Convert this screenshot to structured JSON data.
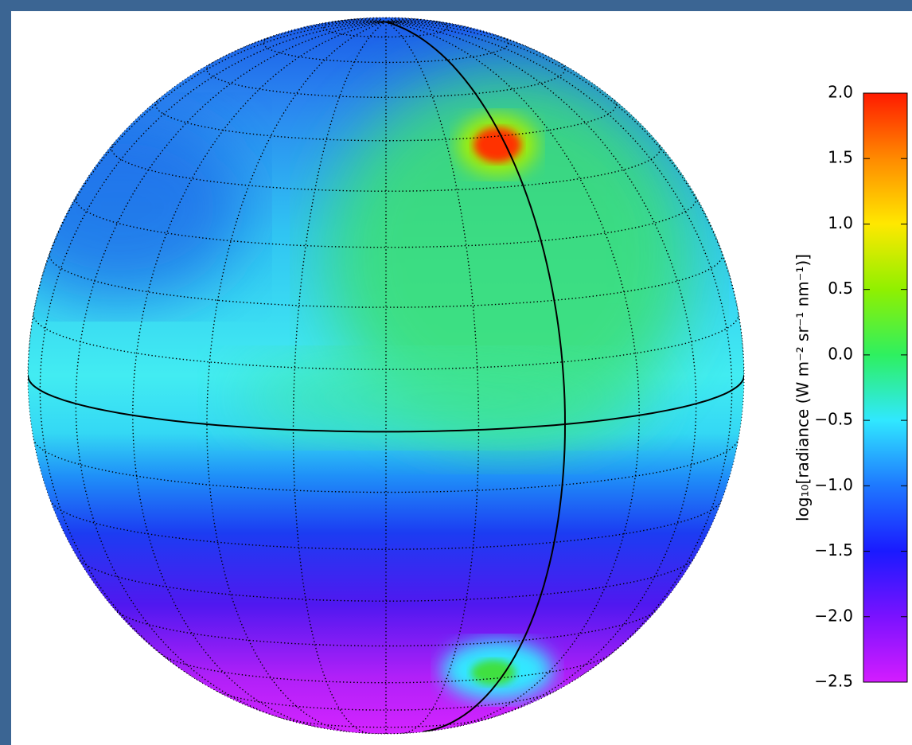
{
  "chart_data": {
    "type": "globe",
    "colorbar": {
      "label": "log₁₀[radiance (W m⁻² sr⁻¹ nm⁻¹)]",
      "lim": [
        -2.5,
        2.0
      ],
      "ticks": [
        {
          "value": 2.0,
          "label": "2.0"
        },
        {
          "value": 1.5,
          "label": "1.5"
        },
        {
          "value": 1.0,
          "label": "1.0"
        },
        {
          "value": 0.5,
          "label": "0.5"
        },
        {
          "value": 0.0,
          "label": "0.0"
        },
        {
          "value": -0.5,
          "label": "−0.5"
        },
        {
          "value": -1.0,
          "label": "−1.0"
        },
        {
          "value": -1.5,
          "label": "−1.5"
        },
        {
          "value": -2.0,
          "label": "−2.0"
        },
        {
          "value": -2.5,
          "label": "−2.5"
        }
      ],
      "colormap": [
        "#d41cff",
        "#7a12ff",
        "#1a1aff",
        "#1e78ff",
        "#30e8ff",
        "#2ef060",
        "#90f000",
        "#ffe800",
        "#ff8a00",
        "#ff1a00"
      ]
    },
    "grid": true
  }
}
